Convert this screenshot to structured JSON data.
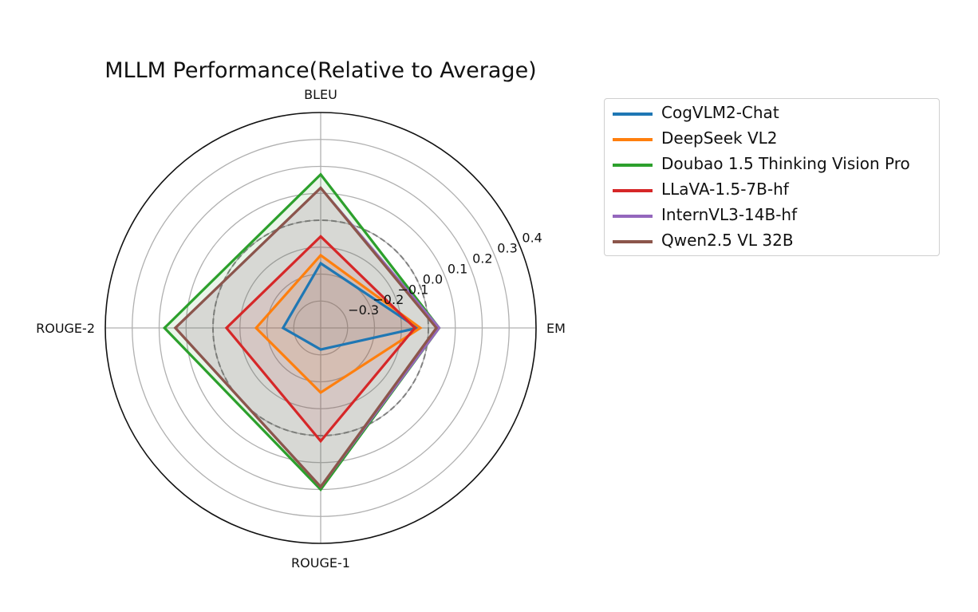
{
  "chart_data": {
    "type": "radar",
    "title": "MLLM Performance(Relative to Average)",
    "axes": [
      "BLEU",
      "EM",
      "ROUGE-1",
      "ROUGE-2"
    ],
    "rlim": [
      -0.4,
      0.4
    ],
    "rticks": [
      "−0.3",
      "−0.2",
      "−0.1",
      "0.0",
      "0.1",
      "0.2",
      "0.3",
      "0.4"
    ],
    "rtick_values": [
      -0.3,
      -0.2,
      -0.1,
      0.0,
      0.1,
      0.2,
      0.3,
      0.4
    ],
    "reference_value": 0.0,
    "grid": true,
    "legend_position": "right",
    "series": [
      {
        "name": "CogVLM2-Chat",
        "color": "#1f77b4",
        "values": [
          -0.16,
          -0.04,
          -0.32,
          -0.26
        ]
      },
      {
        "name": "DeepSeek VL2",
        "color": "#ff7f0e",
        "values": [
          -0.13,
          -0.03,
          -0.16,
          -0.16
        ]
      },
      {
        "name": "Doubao 1.5 Thinking Vision Pro",
        "color": "#2ca02c",
        "values": [
          0.17,
          0.04,
          0.2,
          0.18
        ]
      },
      {
        "name": "LLaVA-1.5-7B-hf",
        "color": "#d62728",
        "values": [
          -0.06,
          -0.05,
          0.02,
          -0.05
        ]
      },
      {
        "name": "InternVL3-14B-hf",
        "color": "#9467bd",
        "values": [
          0.12,
          0.04,
          0.19,
          0.14
        ]
      },
      {
        "name": "Qwen2.5 VL 32B",
        "color": "#8c564b",
        "values": [
          0.12,
          0.03,
          0.19,
          0.14
        ]
      }
    ]
  }
}
